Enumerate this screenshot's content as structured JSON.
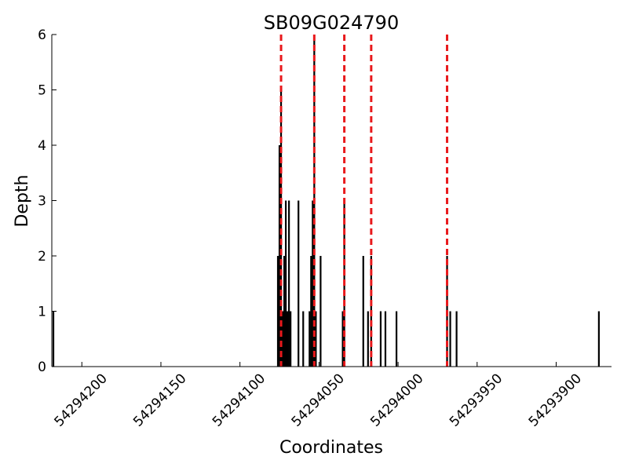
{
  "chart_data": {
    "type": "bar",
    "title": "SB09G024790",
    "xlabel": "Coordinates",
    "ylabel": "Depth",
    "xlim": [
      54294219,
      54293865
    ],
    "x_reversed": true,
    "ylim": [
      0,
      6
    ],
    "grid": false,
    "yticks": [
      0,
      1,
      2,
      3,
      4,
      5,
      6
    ],
    "xticks": [
      {
        "value": 54294200,
        "label": "54294200"
      },
      {
        "value": 54294150,
        "label": "54294150"
      },
      {
        "value": 54294100,
        "label": "54294100"
      },
      {
        "value": 54294050,
        "label": "54294050"
      },
      {
        "value": 54294000,
        "label": "54294000"
      },
      {
        "value": 54293950,
        "label": "54293950"
      },
      {
        "value": 54293900,
        "label": "54293900"
      }
    ],
    "bars": [
      {
        "x": 54294218,
        "y": 1
      },
      {
        "x": 54294076,
        "y": 2
      },
      {
        "x": 54294075,
        "y": 4
      },
      {
        "x": 54294074,
        "y": 5
      },
      {
        "x": 54294073,
        "y": 1
      },
      {
        "x": 54294072,
        "y": 2
      },
      {
        "x": 54294071,
        "y": 3
      },
      {
        "x": 54294070,
        "y": 1
      },
      {
        "x": 54294069,
        "y": 3
      },
      {
        "x": 54294068,
        "y": 1
      },
      {
        "x": 54294063,
        "y": 3
      },
      {
        "x": 54294060,
        "y": 1
      },
      {
        "x": 54294056,
        "y": 1
      },
      {
        "x": 54294055,
        "y": 2
      },
      {
        "x": 54294054,
        "y": 3
      },
      {
        "x": 54294053,
        "y": 6
      },
      {
        "x": 54294052,
        "y": 1
      },
      {
        "x": 54294049,
        "y": 2
      },
      {
        "x": 54294035,
        "y": 1
      },
      {
        "x": 54294034,
        "y": 3
      },
      {
        "x": 54294022,
        "y": 2
      },
      {
        "x": 54294019,
        "y": 1
      },
      {
        "x": 54294017,
        "y": 2
      },
      {
        "x": 54294011,
        "y": 1
      },
      {
        "x": 54294008,
        "y": 1
      },
      {
        "x": 54294001,
        "y": 1
      },
      {
        "x": 54293969,
        "y": 2
      },
      {
        "x": 54293967,
        "y": 1
      },
      {
        "x": 54293963,
        "y": 1
      },
      {
        "x": 54293873,
        "y": 1
      }
    ],
    "vlines": [
      54294074,
      54294053,
      54294034,
      54294017,
      54293969
    ],
    "vline_color": "#e8191c",
    "bar_color": "#000000",
    "axis_color": "#000000"
  }
}
